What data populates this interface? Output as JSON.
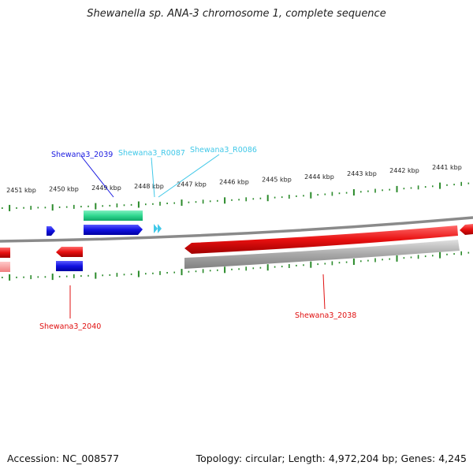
{
  "title": "Shewanella sp. ANA-3 chromosome 1, complete sequence",
  "accession_text": "Accession: NC_008577",
  "topology_text": "Topology: circular; Length: 4,972,204 bp; Genes: 4,245",
  "colors": {
    "backbone": "#8a8a8a",
    "tick": "#2a8a2a",
    "gene_forward": "#1a1ae0",
    "gene_reverse": "#e01010",
    "rna": "#40c8e8",
    "cds_forward": "#30d890",
    "cds_reverse_shadow": "#f08080",
    "cds_reverse_gray": "#a8a8a8"
  },
  "scale": {
    "unit": "kbp",
    "labels": [
      "2451 kbp",
      "2450 kbp",
      "2449 kbp",
      "2448 kbp",
      "2447 kbp",
      "2446 kbp",
      "2445 kbp",
      "2444 kbp",
      "2443 kbp",
      "2442 kbp",
      "2441 kbp"
    ]
  },
  "gene_labels": [
    {
      "id": "Shewana3_2039",
      "strand": "forward",
      "type": "gene"
    },
    {
      "id": "Shewana3_R0087",
      "strand": "forward",
      "type": "rna"
    },
    {
      "id": "Shewana3_R0086",
      "strand": "forward",
      "type": "rna"
    },
    {
      "id": "Shewana3_2040",
      "strand": "reverse",
      "type": "gene"
    },
    {
      "id": "Shewana3_2038",
      "strand": "reverse",
      "type": "gene"
    }
  ]
}
